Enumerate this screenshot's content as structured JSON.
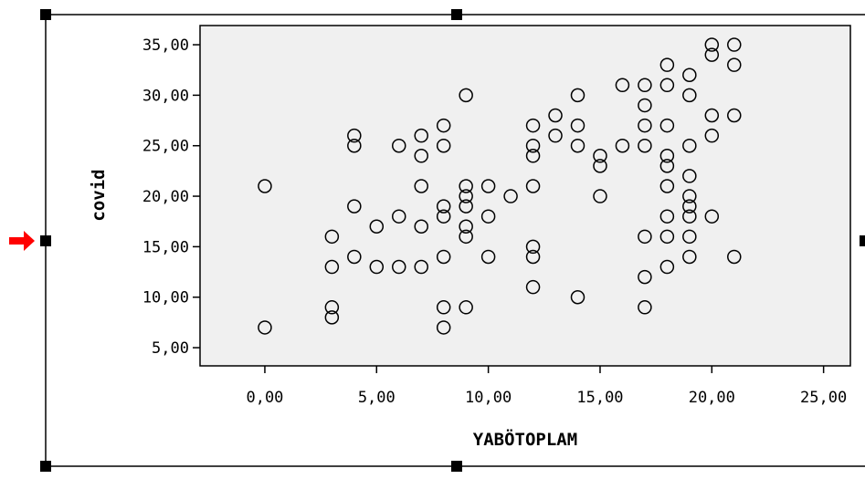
{
  "chart_data": {
    "type": "scatter",
    "xlabel": "YABÖTOPLAM",
    "ylabel": "covid",
    "xlim": [
      -2.9,
      26.2
    ],
    "ylim": [
      3.2,
      36.9
    ],
    "xticks": [
      0,
      5,
      10,
      15,
      20,
      25
    ],
    "yticks": [
      5,
      10,
      15,
      20,
      25,
      30,
      35
    ],
    "xtick_labels": [
      "0,00",
      "5,00",
      "10,00",
      "15,00",
      "20,00",
      "25,00"
    ],
    "ytick_labels": [
      "5,00",
      "10,00",
      "15,00",
      "20,00",
      "25,00",
      "30,00",
      "35,00"
    ],
    "grid": false,
    "plot_background": "#f0f0f0",
    "marker": "open-circle",
    "marker_color": "#000000",
    "selection_arrow_color": "#ff0000",
    "points": [
      [
        0,
        21
      ],
      [
        0,
        7
      ],
      [
        3,
        16
      ],
      [
        3,
        13
      ],
      [
        3,
        9
      ],
      [
        3,
        8
      ],
      [
        4,
        26
      ],
      [
        4,
        25
      ],
      [
        4,
        19
      ],
      [
        4,
        14
      ],
      [
        5,
        17
      ],
      [
        5,
        13
      ],
      [
        6,
        25
      ],
      [
        6,
        18
      ],
      [
        6,
        13
      ],
      [
        7,
        26
      ],
      [
        7,
        24
      ],
      [
        7,
        21
      ],
      [
        7,
        17
      ],
      [
        7,
        13
      ],
      [
        8,
        27
      ],
      [
        8,
        25
      ],
      [
        8,
        19
      ],
      [
        8,
        18
      ],
      [
        8,
        14
      ],
      [
        8,
        9
      ],
      [
        8,
        7
      ],
      [
        9,
        30
      ],
      [
        9,
        21
      ],
      [
        9,
        20
      ],
      [
        9,
        19
      ],
      [
        9,
        17
      ],
      [
        9,
        16
      ],
      [
        9,
        9
      ],
      [
        10,
        21
      ],
      [
        10,
        18
      ],
      [
        10,
        14
      ],
      [
        11,
        20
      ],
      [
        12,
        27
      ],
      [
        12,
        25
      ],
      [
        12,
        24
      ],
      [
        12,
        21
      ],
      [
        12,
        15
      ],
      [
        12,
        14
      ],
      [
        12,
        11
      ],
      [
        13,
        28
      ],
      [
        13,
        26
      ],
      [
        14,
        30
      ],
      [
        14,
        27
      ],
      [
        14,
        25
      ],
      [
        14,
        10
      ],
      [
        15,
        24
      ],
      [
        15,
        23
      ],
      [
        15,
        20
      ],
      [
        16,
        31
      ],
      [
        16,
        25
      ],
      [
        17,
        31
      ],
      [
        17,
        29
      ],
      [
        17,
        27
      ],
      [
        17,
        25
      ],
      [
        17,
        16
      ],
      [
        17,
        12
      ],
      [
        17,
        9
      ],
      [
        18,
        33
      ],
      [
        18,
        31
      ],
      [
        18,
        27
      ],
      [
        18,
        24
      ],
      [
        18,
        23
      ],
      [
        18,
        21
      ],
      [
        18,
        18
      ],
      [
        18,
        16
      ],
      [
        18,
        13
      ],
      [
        19,
        32
      ],
      [
        19,
        30
      ],
      [
        19,
        25
      ],
      [
        19,
        22
      ],
      [
        19,
        20
      ],
      [
        19,
        19
      ],
      [
        19,
        18
      ],
      [
        19,
        16
      ],
      [
        19,
        14
      ],
      [
        20,
        35
      ],
      [
        20,
        34
      ],
      [
        20,
        28
      ],
      [
        20,
        26
      ],
      [
        20,
        18
      ],
      [
        21,
        35
      ],
      [
        21,
        33
      ],
      [
        21,
        28
      ],
      [
        21,
        14
      ]
    ]
  }
}
